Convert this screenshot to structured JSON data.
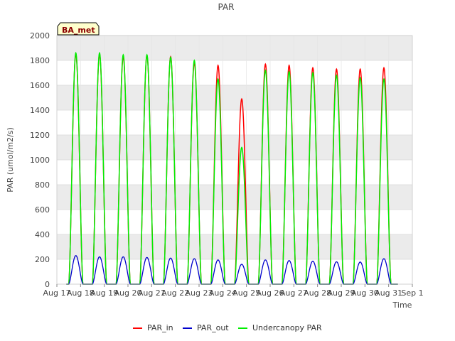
{
  "chart_data": {
    "type": "line",
    "title": "PAR",
    "xlabel": "Time",
    "ylabel": "PAR (umol/m2/s)",
    "ylim": [
      0,
      2000
    ],
    "yticks": [
      0,
      200,
      400,
      600,
      800,
      1000,
      1200,
      1400,
      1600,
      1800,
      2000
    ],
    "xlim_days": [
      17,
      32
    ],
    "xtick_days": [
      17,
      18,
      19,
      20,
      21,
      22,
      23,
      24,
      25,
      26,
      27,
      28,
      29,
      30,
      31,
      32
    ],
    "xtick_labels": [
      "Aug 17",
      "Aug 18",
      "Aug 19",
      "Aug 20",
      "Aug 21",
      "Aug 22",
      "Aug 23",
      "Aug 24",
      "Aug 25",
      "Aug 26",
      "Aug 27",
      "Aug 28",
      "Aug 29",
      "Aug 30",
      "Aug 31",
      "Sep 1"
    ],
    "badge": "BA_met",
    "grid": true,
    "legend_position": "bottom",
    "series": [
      {
        "name": "PAR_in",
        "color": "#ff0000",
        "noon_days": [
          17.8,
          18.8,
          19.8,
          20.8,
          21.8,
          22.8,
          23.8,
          24.8,
          25.8,
          26.8,
          27.8,
          28.8,
          29.8,
          30.8
        ],
        "daily_peaks": [
          1850,
          1850,
          1830,
          1840,
          1830,
          1780,
          1760,
          1490,
          1770,
          1760,
          1740,
          1730,
          1730,
          1740
        ]
      },
      {
        "name": "PAR_out",
        "color": "#0000cc",
        "noon_days": [
          17.8,
          18.8,
          19.8,
          20.8,
          21.8,
          22.8,
          23.8,
          24.8,
          25.8,
          26.8,
          27.8,
          28.8,
          29.8,
          30.8
        ],
        "daily_peaks": [
          230,
          220,
          220,
          215,
          210,
          205,
          195,
          160,
          195,
          190,
          185,
          180,
          178,
          205
        ]
      },
      {
        "name": "Undercanopy PAR",
        "color": "#00ee00",
        "noon_days": [
          17.8,
          18.8,
          19.8,
          20.8,
          21.8,
          22.8,
          23.8,
          24.8,
          25.8,
          26.8,
          27.8,
          28.8,
          29.8,
          30.8
        ],
        "daily_peaks": [
          1860,
          1860,
          1845,
          1845,
          1825,
          1800,
          1650,
          1100,
          1720,
          1710,
          1700,
          1680,
          1660,
          1650
        ]
      }
    ]
  }
}
